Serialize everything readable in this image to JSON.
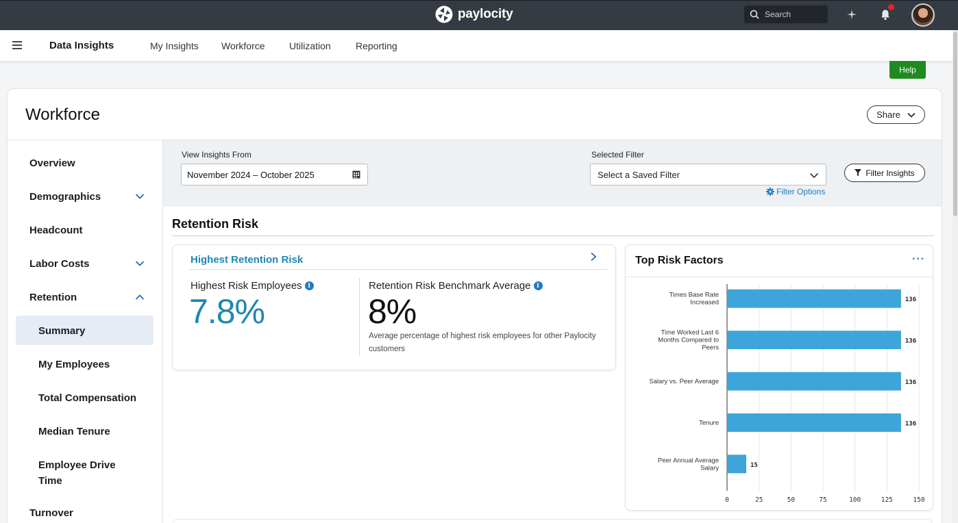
{
  "topbar": {
    "brand": "paylocity",
    "search_placeholder": "Search",
    "icons": [
      "sparkle-icon",
      "bell-icon",
      "user-avatar"
    ]
  },
  "subnav": {
    "app_title": "Data Insights",
    "links": [
      "My Insights",
      "Workforce",
      "Utilization",
      "Reporting"
    ]
  },
  "help_label": "Help",
  "page": {
    "title": "Workforce",
    "share_label": "Share"
  },
  "sidenav": {
    "items": [
      {
        "label": "Overview"
      },
      {
        "label": "Demographics",
        "expandable": true
      },
      {
        "label": "Headcount"
      },
      {
        "label": "Labor Costs",
        "expandable": true
      },
      {
        "label": "Retention",
        "expanded": true
      }
    ],
    "retention_children": [
      "Summary",
      "My Employees",
      "Total Compensation",
      "Median Tenure",
      "Employee Drive Time"
    ],
    "active": "Summary",
    "after": "Turnover"
  },
  "filters": {
    "view_label": "View Insights From",
    "date_range": "November 2024 – October 2025",
    "selected_filter_label": "Selected Filter",
    "selected_filter_placeholder": "Select a Saved Filter",
    "filter_options": "Filter Options",
    "filter_insights": "Filter Insights"
  },
  "section": {
    "title": "Retention Risk"
  },
  "retention_tile": {
    "title": "Highest Retention Risk",
    "metric1_label": "Highest Risk Employees",
    "metric1_value": "7.8%",
    "metric2_label": "Retention Risk Benchmark Average",
    "metric2_value": "8%",
    "metric2_desc": "Average percentage of highest risk employees for other Paylocity customers"
  },
  "risk_tile": {
    "title": "Top Risk Factors",
    "menu": "···"
  },
  "colors": {
    "accent_blue": "#1f86b5",
    "bar_blue": "#3da5d9",
    "help_green": "#1f8a1f",
    "topbar": "#353b42"
  },
  "chart_data": {
    "type": "bar",
    "orientation": "horizontal",
    "title": "Top Risk Factors",
    "categories": [
      [
        "Times Base Rate",
        "Increased"
      ],
      [
        "Time Worked Last 6",
        "Months Compared to",
        "Peers"
      ],
      [
        "Salary vs. Peer Average"
      ],
      [
        "Tenure"
      ],
      [
        "Peer Annual Average",
        "Salary"
      ]
    ],
    "values": [
      136,
      136,
      136,
      136,
      15
    ],
    "xlim": [
      0,
      150
    ],
    "xticks": [
      0,
      25,
      50,
      75,
      100,
      125,
      150
    ],
    "grid": true
  }
}
